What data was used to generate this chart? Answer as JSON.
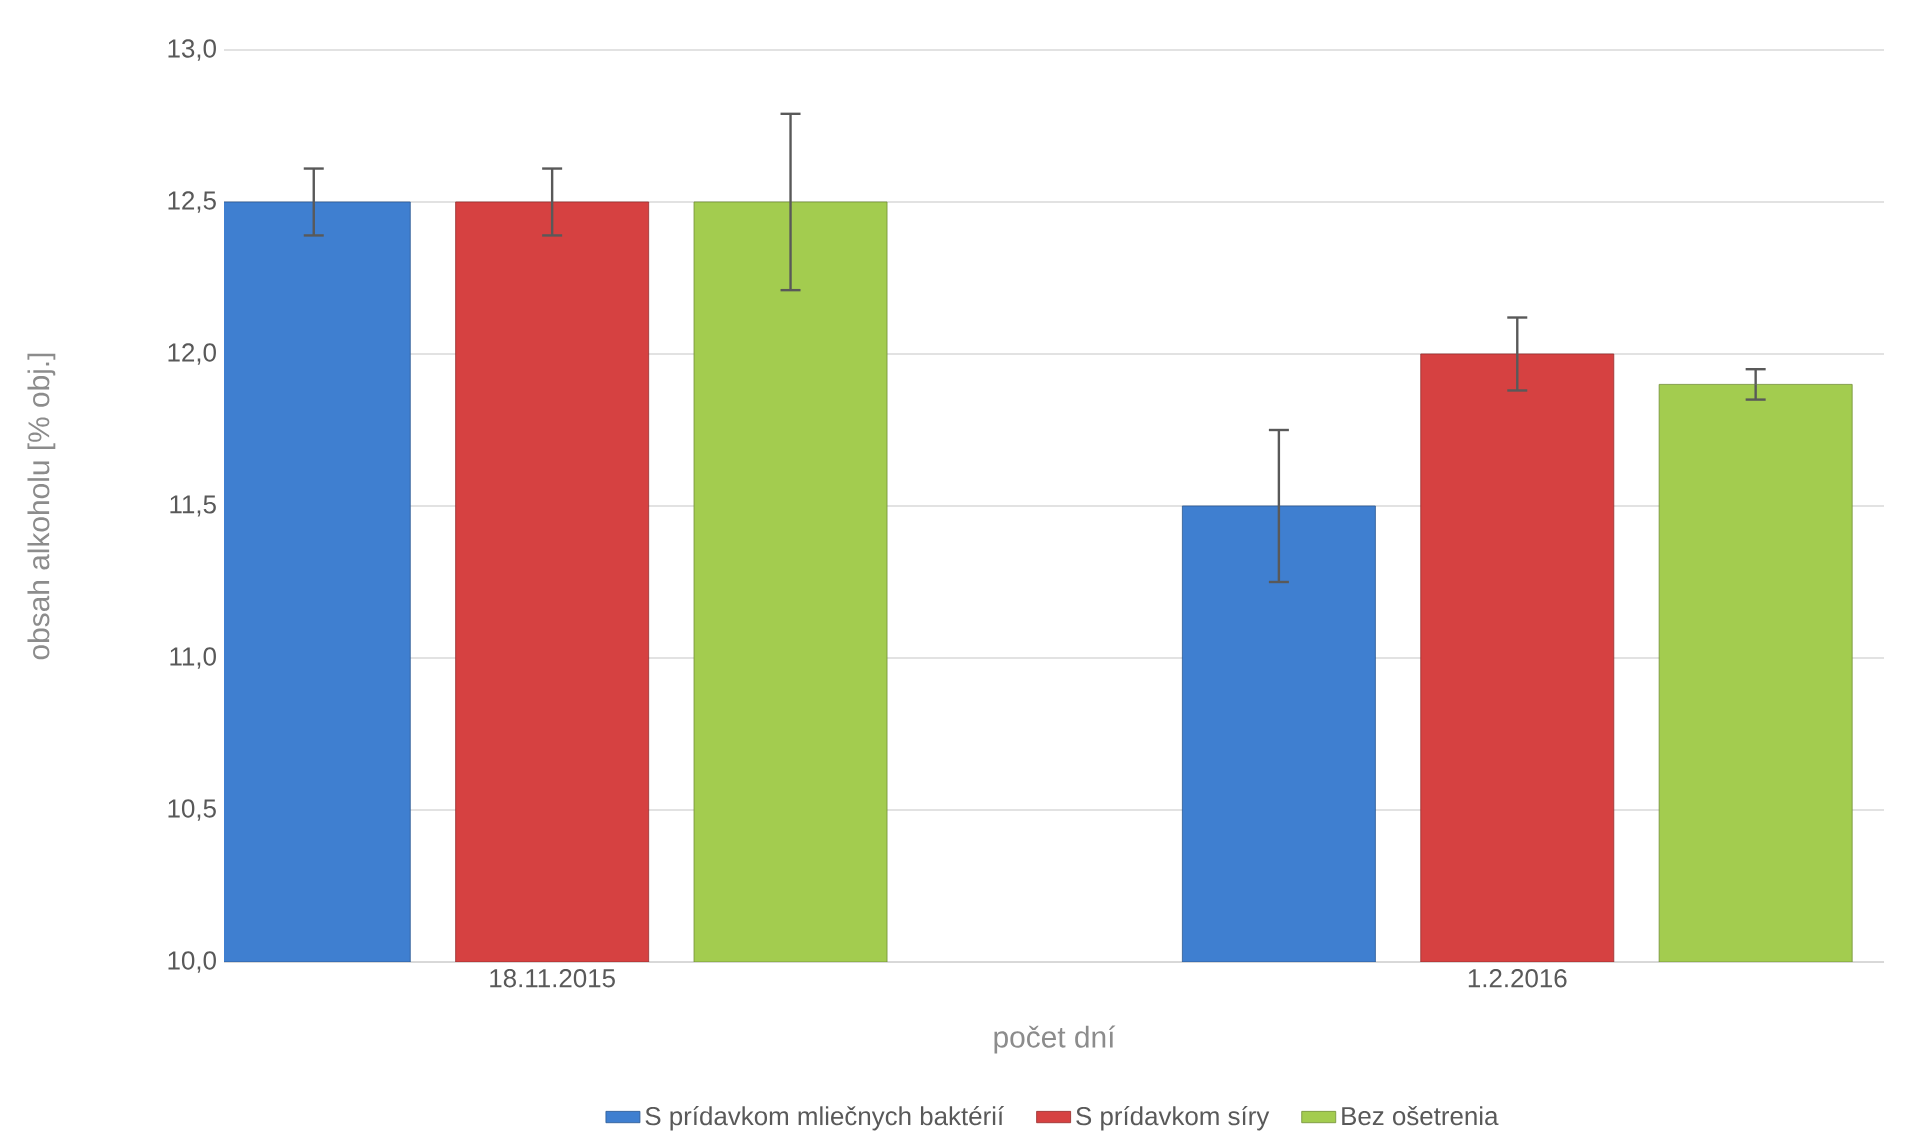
{
  "chart_data": {
    "type": "bar",
    "xlabel": "počet dní",
    "ylabel": "obsah alkoholu [% obj.]",
    "categories": [
      "18.11.2015",
      "1.2.2016"
    ],
    "series": [
      {
        "name": "S prídavkom mliečnych baktérií",
        "color": "#3f7fd0",
        "values": [
          12.5,
          11.5
        ],
        "errors": [
          0.11,
          0.25
        ]
      },
      {
        "name": "S prídavkom síry",
        "color": "#d64141",
        "values": [
          12.5,
          12.0
        ],
        "errors": [
          0.11,
          0.12
        ]
      },
      {
        "name": "Bez ošetrenia",
        "color": "#a3cc4f",
        "values": [
          12.5,
          11.9
        ],
        "errors": [
          0.29,
          0.05
        ]
      }
    ],
    "ylim": [
      10.0,
      13.0
    ],
    "yticks": [
      {
        "value": 10.0,
        "label": "10,0"
      },
      {
        "value": 10.5,
        "label": "10,5"
      },
      {
        "value": 11.0,
        "label": "11,0"
      },
      {
        "value": 11.5,
        "label": "11,5"
      },
      {
        "value": 12.0,
        "label": "12,0"
      },
      {
        "value": 12.5,
        "label": "12,5"
      },
      {
        "value": 13.0,
        "label": "13,0"
      }
    ],
    "grid": "y",
    "legend": "bottom"
  }
}
